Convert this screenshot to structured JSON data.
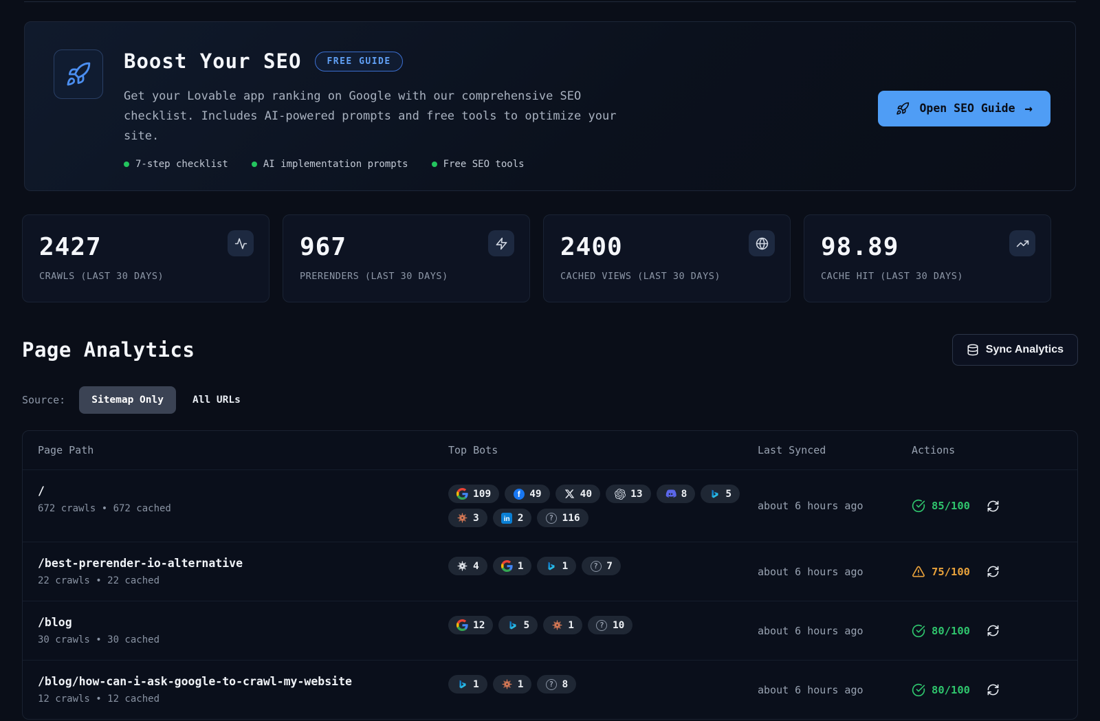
{
  "banner": {
    "title": "Boost Your SEO",
    "badge": "FREE GUIDE",
    "description": "Get your Lovable app ranking on Google with our comprehensive SEO checklist. Includes AI-powered prompts and free tools to optimize your site.",
    "features": [
      "7-step checklist",
      "AI implementation prompts",
      "Free SEO tools"
    ],
    "cta_label": "Open SEO Guide",
    "cta_arrow": "→"
  },
  "stats": [
    {
      "value": "2427",
      "label": "CRAWLS (LAST 30 DAYS)",
      "icon": "activity-icon"
    },
    {
      "value": "967",
      "label": "PRERENDERS (LAST 30 DAYS)",
      "icon": "zap-icon"
    },
    {
      "value": "2400",
      "label": "CACHED VIEWS (LAST 30 DAYS)",
      "icon": "globe-icon"
    },
    {
      "value": "98.89",
      "label": "CACHE HIT (LAST 30 DAYS)",
      "icon": "trending-up-icon"
    }
  ],
  "analytics": {
    "title": "Page Analytics",
    "sync_button": "Sync Analytics",
    "source_label": "Source:",
    "source_selected": "Sitemap Only",
    "source_other": "All URLs"
  },
  "table": {
    "columns": [
      "Page Path",
      "Top Bots",
      "Last Synced",
      "Actions"
    ],
    "rows": [
      {
        "path": "/",
        "meta": "672 crawls • 672 cached",
        "bots": [
          {
            "icon": "google-icon",
            "count": "109"
          },
          {
            "icon": "facebook-icon",
            "count": "49"
          },
          {
            "icon": "x-icon",
            "count": "40"
          },
          {
            "icon": "openai-icon",
            "count": "13"
          },
          {
            "icon": "discord-icon",
            "count": "8"
          },
          {
            "icon": "bing-icon",
            "count": "5"
          },
          {
            "icon": "claude-icon",
            "count": "3"
          },
          {
            "icon": "linkedin-icon",
            "count": "2"
          },
          {
            "icon": "question-icon",
            "count": "116"
          }
        ],
        "last_synced": "about 6 hours ago",
        "score": "85/100",
        "score_status": "good"
      },
      {
        "path": "/best-prerender-io-alternative",
        "meta": "22 crawls • 22 cached",
        "bots": [
          {
            "icon": "asterisk-bot-icon",
            "count": "4"
          },
          {
            "icon": "google-icon",
            "count": "1"
          },
          {
            "icon": "bing-icon",
            "count": "1"
          },
          {
            "icon": "question-icon",
            "count": "7"
          }
        ],
        "last_synced": "about 6 hours ago",
        "score": "75/100",
        "score_status": "warn"
      },
      {
        "path": "/blog",
        "meta": "30 crawls • 30 cached",
        "bots": [
          {
            "icon": "google-icon",
            "count": "12"
          },
          {
            "icon": "bing-icon",
            "count": "5"
          },
          {
            "icon": "claude-icon",
            "count": "1"
          },
          {
            "icon": "question-icon",
            "count": "10"
          }
        ],
        "last_synced": "about 6 hours ago",
        "score": "80/100",
        "score_status": "good"
      },
      {
        "path": "/blog/how-can-i-ask-google-to-crawl-my-website",
        "meta": "12 crawls • 12 cached",
        "bots": [
          {
            "icon": "bing-icon",
            "count": "1"
          },
          {
            "icon": "claude-icon",
            "count": "1"
          },
          {
            "icon": "question-icon",
            "count": "8"
          }
        ],
        "last_synced": "about 6 hours ago",
        "score": "80/100",
        "score_status": "good"
      }
    ]
  },
  "colors": {
    "accent_blue": "#4f9df5",
    "success_green": "#2fc56d",
    "warning_amber": "#e9a23b",
    "badge_blue_text": "#61a1f6",
    "feature_dot_green": "#23c55e"
  }
}
